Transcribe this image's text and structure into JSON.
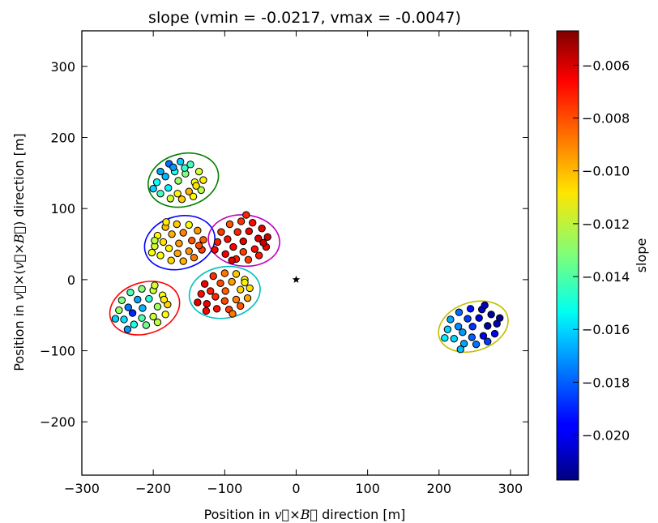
{
  "chart_data": {
    "type": "scatter",
    "title": "slope (vmin = -0.0217, vmax = -0.0047)",
    "xlabel_parts": [
      "Position in ",
      "v",
      "×",
      "B",
      " direction [m]"
    ],
    "ylabel_parts": [
      "Position in ",
      "v",
      "×(",
      "v",
      "×",
      "B",
      ") direction [m]"
    ],
    "xlim": [
      -300,
      325
    ],
    "ylim": [
      -275,
      350
    ],
    "xticks": [
      -300,
      -200,
      -100,
      0,
      100,
      200,
      300
    ],
    "xtick_labels": [
      "−300",
      "−200",
      "−100",
      "0",
      "100",
      "200",
      "300"
    ],
    "yticks": [
      -200,
      -100,
      0,
      100,
      200,
      300
    ],
    "ytick_labels": [
      "−200",
      "−100",
      "0",
      "100",
      "200",
      "300"
    ],
    "grid": false,
    "colormap": "jet",
    "colorbar": {
      "label": "slope",
      "vmin": -0.0217,
      "vmax": -0.0047,
      "ticks": [
        -0.02,
        -0.018,
        -0.016,
        -0.014,
        -0.012,
        -0.01,
        -0.008,
        -0.006
      ],
      "tick_labels": [
        "−0.020",
        "−0.018",
        "−0.016",
        "−0.014",
        "−0.012",
        "−0.010",
        "−0.008",
        "−0.006"
      ]
    },
    "core_marker": {
      "x": 0,
      "y": 0,
      "symbol": "star",
      "color": "#000000"
    },
    "clusters": [
      {
        "cx": -158,
        "cy": 140,
        "rx": 50,
        "ry": 37,
        "rot": 15,
        "color": "#008000",
        "points": [
          [
            -195,
            137,
            -0.0152
          ],
          [
            -190,
            152,
            -0.0168
          ],
          [
            -178,
            163,
            -0.0178
          ],
          [
            -162,
            166,
            -0.0162
          ],
          [
            -148,
            162,
            -0.0142
          ],
          [
            -136,
            152,
            -0.0118
          ],
          [
            -130,
            140,
            -0.0108
          ],
          [
            -133,
            126,
            -0.0122
          ],
          [
            -144,
            117,
            -0.011
          ],
          [
            -160,
            113,
            -0.0102
          ],
          [
            -176,
            114,
            -0.0118
          ],
          [
            -190,
            121,
            -0.0142
          ],
          [
            -183,
            145,
            -0.0165
          ],
          [
            -170,
            152,
            -0.015
          ],
          [
            -155,
            149,
            -0.0132
          ],
          [
            -142,
            137,
            -0.0112
          ],
          [
            -150,
            124,
            -0.0098
          ],
          [
            -166,
            121,
            -0.0108
          ],
          [
            -179,
            129,
            -0.0155
          ],
          [
            -165,
            139,
            -0.0128
          ],
          [
            -200,
            128,
            -0.016
          ],
          [
            -140,
            132,
            -0.0106
          ],
          [
            -172,
            158,
            -0.017
          ],
          [
            -156,
            157,
            -0.0145
          ]
        ]
      },
      {
        "cx": -163,
        "cy": 52,
        "rx": 50,
        "ry": 37,
        "rot": 15,
        "color": "#0000ff",
        "points": [
          [
            -198,
            47,
            -0.0118
          ],
          [
            -194,
            62,
            -0.011
          ],
          [
            -183,
            74,
            -0.01
          ],
          [
            -167,
            78,
            -0.0102
          ],
          [
            -150,
            77,
            -0.0112
          ],
          [
            -138,
            69,
            -0.0094
          ],
          [
            -130,
            56,
            -0.0084
          ],
          [
            -132,
            42,
            -0.0078
          ],
          [
            -143,
            31,
            -0.0088
          ],
          [
            -158,
            26,
            -0.0098
          ],
          [
            -175,
            27,
            -0.0104
          ],
          [
            -190,
            34,
            -0.0112
          ],
          [
            -186,
            53,
            -0.0106
          ],
          [
            -174,
            64,
            -0.0098
          ],
          [
            -158,
            66,
            -0.009
          ],
          [
            -146,
            55,
            -0.0082
          ],
          [
            -150,
            40,
            -0.0092
          ],
          [
            -166,
            37,
            -0.0096
          ],
          [
            -178,
            44,
            -0.0108
          ],
          [
            -164,
            51,
            -0.0094
          ],
          [
            -202,
            38,
            -0.0112
          ],
          [
            -136,
            48,
            -0.008
          ],
          [
            -182,
            81,
            -0.0108
          ],
          [
            -198,
            55,
            -0.0122
          ]
        ]
      },
      {
        "cx": -73,
        "cy": 55,
        "rx": 50,
        "ry": 36,
        "rot": -5,
        "color": "#bf00bf",
        "points": [
          [
            -110,
            53,
            -0.0072
          ],
          [
            -105,
            67,
            -0.0078
          ],
          [
            -93,
            78,
            -0.0082
          ],
          [
            -77,
            82,
            -0.0076
          ],
          [
            -61,
            80,
            -0.007
          ],
          [
            -48,
            72,
            -0.0064
          ],
          [
            -40,
            60,
            -0.006
          ],
          [
            -42,
            46,
            -0.0066
          ],
          [
            -52,
            34,
            -0.0072
          ],
          [
            -67,
            28,
            -0.0078
          ],
          [
            -84,
            29,
            -0.0072
          ],
          [
            -99,
            36,
            -0.0066
          ],
          [
            -96,
            57,
            -0.007
          ],
          [
            -82,
            67,
            -0.0074
          ],
          [
            -66,
            68,
            -0.0066
          ],
          [
            -53,
            58,
            -0.0062
          ],
          [
            -58,
            43,
            -0.007
          ],
          [
            -74,
            39,
            -0.0078
          ],
          [
            -88,
            46,
            -0.0068
          ],
          [
            -74,
            54,
            -0.0064
          ],
          [
            -114,
            42,
            -0.0068
          ],
          [
            -46,
            52,
            -0.0058
          ],
          [
            -70,
            91,
            -0.0074
          ],
          [
            -90,
            27,
            -0.0062
          ]
        ]
      },
      {
        "cx": -100,
        "cy": -18,
        "rx": 50,
        "ry": 36,
        "rot": 10,
        "color": "#00bfbf",
        "points": [
          [
            -133,
            -20,
            -0.007
          ],
          [
            -128,
            -6,
            -0.0066
          ],
          [
            -116,
            5,
            -0.0076
          ],
          [
            -100,
            9,
            -0.0088
          ],
          [
            -84,
            8,
            -0.0102
          ],
          [
            -72,
            0,
            -0.0112
          ],
          [
            -65,
            -12,
            -0.0106
          ],
          [
            -68,
            -26,
            -0.0096
          ],
          [
            -78,
            -37,
            -0.0082
          ],
          [
            -94,
            -42,
            -0.0078
          ],
          [
            -111,
            -41,
            -0.007
          ],
          [
            -125,
            -34,
            -0.0066
          ],
          [
            -120,
            -16,
            -0.0072
          ],
          [
            -106,
            -5,
            -0.008
          ],
          [
            -90,
            -3,
            -0.0094
          ],
          [
            -78,
            -14,
            -0.0104
          ],
          [
            -84,
            -28,
            -0.009
          ],
          [
            -100,
            -30,
            -0.008
          ],
          [
            -113,
            -24,
            -0.0074
          ],
          [
            -99,
            -16,
            -0.0084
          ],
          [
            -138,
            -32,
            -0.0064
          ],
          [
            -72,
            -4,
            -0.0108
          ],
          [
            -89,
            -48,
            -0.0088
          ],
          [
            -126,
            -44,
            -0.0068
          ]
        ]
      },
      {
        "cx": -212,
        "cy": -40,
        "rx": 50,
        "ry": 36,
        "rot": 18,
        "color": "#ff0000",
        "points": [
          [
            -248,
            -43,
            -0.0128
          ],
          [
            -244,
            -29,
            -0.0132
          ],
          [
            -232,
            -18,
            -0.014
          ],
          [
            -216,
            -13,
            -0.013
          ],
          [
            -200,
            -15,
            -0.012
          ],
          [
            -187,
            -22,
            -0.0112
          ],
          [
            -180,
            -35,
            -0.0104
          ],
          [
            -183,
            -49,
            -0.0112
          ],
          [
            -194,
            -60,
            -0.0122
          ],
          [
            -210,
            -64,
            -0.0134
          ],
          [
            -227,
            -63,
            -0.0148
          ],
          [
            -241,
            -56,
            -0.0158
          ],
          [
            -235,
            -39,
            -0.0176
          ],
          [
            -222,
            -28,
            -0.0168
          ],
          [
            -206,
            -27,
            -0.0146
          ],
          [
            -194,
            -38,
            -0.0126
          ],
          [
            -200,
            -52,
            -0.012
          ],
          [
            -216,
            -54,
            -0.014
          ],
          [
            -229,
            -47,
            -0.019
          ],
          [
            -215,
            -40,
            -0.0165
          ],
          [
            -253,
            -55,
            -0.016
          ],
          [
            -185,
            -28,
            -0.0108
          ],
          [
            -236,
            -70,
            -0.017
          ],
          [
            -198,
            -8,
            -0.0118
          ]
        ]
      },
      {
        "cx": 248,
        "cy": -66,
        "rx": 50,
        "ry": 34,
        "rot": 18,
        "color": "#bfbf00",
        "points": [
          [
            212,
            -70,
            -0.016
          ],
          [
            216,
            -56,
            -0.0168
          ],
          [
            228,
            -46,
            -0.0178
          ],
          [
            244,
            -41,
            -0.0194
          ],
          [
            260,
            -42,
            -0.0204
          ],
          [
            273,
            -49,
            -0.0212
          ],
          [
            281,
            -62,
            -0.0208
          ],
          [
            278,
            -76,
            -0.0198
          ],
          [
            268,
            -87,
            -0.0186
          ],
          [
            252,
            -91,
            -0.0176
          ],
          [
            235,
            -90,
            -0.0168
          ],
          [
            221,
            -83,
            -0.016
          ],
          [
            227,
            -66,
            -0.0172
          ],
          [
            240,
            -55,
            -0.0186
          ],
          [
            256,
            -54,
            -0.02
          ],
          [
            268,
            -65,
            -0.021
          ],
          [
            262,
            -79,
            -0.0196
          ],
          [
            246,
            -81,
            -0.018
          ],
          [
            233,
            -74,
            -0.017
          ],
          [
            247,
            -66,
            -0.0188
          ],
          [
            208,
            -82,
            -0.0156
          ],
          [
            285,
            -54,
            -0.0214
          ],
          [
            230,
            -98,
            -0.0164
          ],
          [
            264,
            -36,
            -0.0206
          ]
        ]
      }
    ]
  }
}
